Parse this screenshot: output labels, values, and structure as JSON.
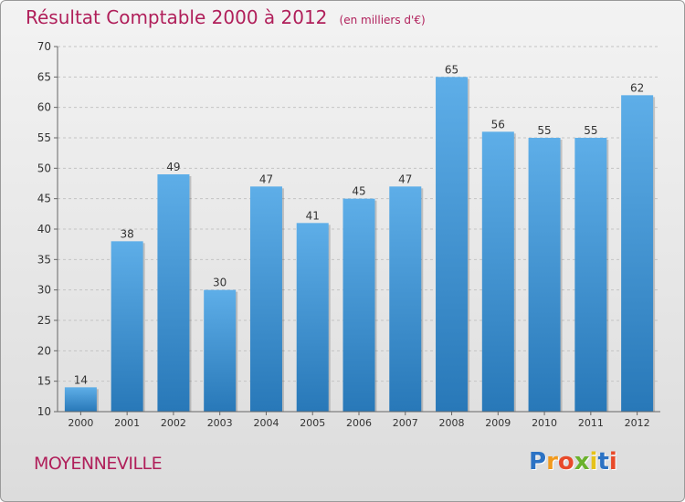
{
  "chart_data": {
    "type": "bar",
    "title": "Résultat Comptable 2000 à 2012",
    "subtitle": "(en milliers d'€)",
    "categories": [
      "2000",
      "2001",
      "2002",
      "2003",
      "2004",
      "2005",
      "2006",
      "2007",
      "2008",
      "2009",
      "2010",
      "2011",
      "2012"
    ],
    "values": [
      14,
      38,
      49,
      30,
      47,
      41,
      45,
      47,
      65,
      56,
      55,
      55,
      62
    ],
    "ylim": [
      10,
      70
    ],
    "yticks": [
      10,
      15,
      20,
      25,
      30,
      35,
      40,
      45,
      50,
      55,
      60,
      65,
      70
    ],
    "grid": true,
    "bar_color_top": "#5eaee8",
    "bar_color_bottom": "#2878b8"
  },
  "footer": {
    "city": "MOYENNEVILLE",
    "logo_letters": [
      "P",
      "r",
      "o",
      "x",
      "i",
      "t",
      "i"
    ],
    "logo_colors": [
      "#2b72c4",
      "#f19a1d",
      "#e84a2a",
      "#6bb22c",
      "#e6c21a",
      "#2b72c4",
      "#e84a2a"
    ]
  }
}
